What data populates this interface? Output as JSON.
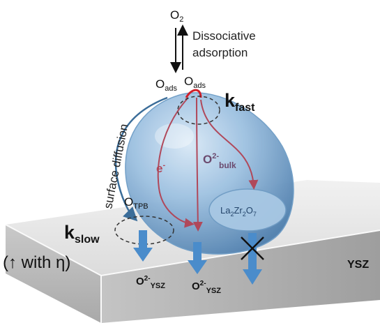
{
  "labels": {
    "o2": "O",
    "o2_sub": "2",
    "dissociative_line1": "Dissociative",
    "dissociative_line2": "adsorption",
    "oads_left": "O",
    "oads_left_sub": "ads",
    "oads_right": "O",
    "oads_right_sub": "ads",
    "kfast": "k",
    "kfast_sub": "fast",
    "surface_diffusion": "surface diffusion",
    "electron": "e",
    "electron_sup": "-",
    "o2bulk": "O",
    "o2bulk_sup": "2-",
    "o2bulk_sub": "bulk",
    "la2zr2o7": [
      "La",
      "2",
      "Zr",
      "2",
      "O",
      "7"
    ],
    "otpb": "O",
    "otpb_sub": "TPB",
    "kslow": "k",
    "kslow_sub": "slow",
    "kslow_note": "(↑ with η)",
    "ysz_label": "YSZ",
    "o2ysz_1": "O",
    "o2ysz_1_sup": "2-",
    "o2ysz_1_sub": "YSZ",
    "o2ysz_2": "O",
    "o2ysz_2_sup": "2-",
    "o2ysz_2_sub": "YSZ"
  },
  "colors": {
    "particle": "#8fb6d8",
    "arrow_blue": "#4a8ccb",
    "path_red": "#b0485a",
    "kfast_red": "#d11f2a",
    "slab_top": "#e6e6e6",
    "slab_front": "#bdbdbd"
  }
}
